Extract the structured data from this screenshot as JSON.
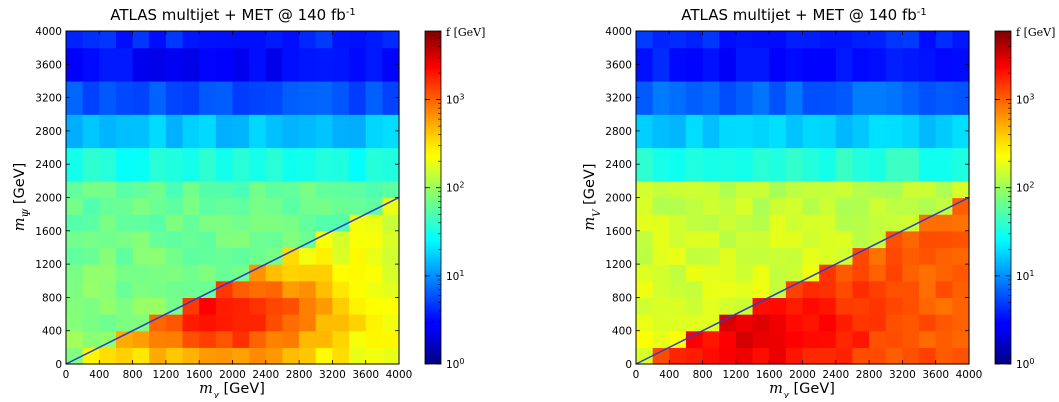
{
  "chart_data": [
    {
      "type": "heatmap",
      "title": "ATLAS multijet + MET @ 140 fb",
      "title_sup": "-1",
      "xlabel": "m",
      "xlabel_sub": "χ",
      "xlabel_unit": " [GeV]",
      "ylabel": "m",
      "ylabel_sub": "Ψ",
      "ylabel_unit": " [GeV]",
      "xlim": [
        0,
        4000
      ],
      "ylim": [
        0,
        4000
      ],
      "xticks": [
        0,
        400,
        800,
        1200,
        1600,
        2000,
        2400,
        2800,
        3200,
        3600,
        4000
      ],
      "yticks": [
        0,
        400,
        800,
        1200,
        1600,
        2000,
        2400,
        2800,
        3200,
        3600,
        4000
      ],
      "colorbar": {
        "label": "f [GeV]",
        "scale": "log",
        "range": [
          1,
          6000
        ],
        "colormap": "jet",
        "ticks": [
          {
            "base": "10",
            "exp": "0",
            "value": 1
          },
          {
            "base": "10",
            "exp": "1",
            "value": 10
          },
          {
            "base": "10",
            "exp": "2",
            "value": 100
          },
          {
            "base": "10",
            "exp": "3",
            "value": 1000
          }
        ]
      },
      "diagonal_line": {
        "from": [
          0,
          0
        ],
        "to": [
          4000,
          2000
        ],
        "color": "#2b3fc8"
      },
      "grid": {
        "x_step": 200,
        "y_step": 200,
        "upper_band_step": 400
      },
      "band_values": [
        {
          "y_range": [
            2200,
            2600
          ],
          "value": 32
        },
        {
          "y_range": [
            2600,
            3000
          ],
          "value": 16
        },
        {
          "y_range": [
            3000,
            3400
          ],
          "value": 6
        },
        {
          "y_range": [
            3400,
            3800
          ],
          "value": 3
        },
        {
          "y_range": [
            3800,
            4000
          ],
          "value": 4
        }
      ],
      "below_line_value": 170,
      "above_line_value": 90,
      "peak_value": 2000,
      "peak_center": [
        1900,
        600
      ]
    },
    {
      "type": "heatmap",
      "title": "ATLAS multijet + MET @ 140 fb",
      "title_sup": "-1",
      "xlabel": "m",
      "xlabel_sub": "χ",
      "xlabel_unit": " [GeV]",
      "ylabel": "m",
      "ylabel_sub": "V",
      "ylabel_unit": " [GeV]",
      "xlim": [
        0,
        4000
      ],
      "ylim": [
        0,
        4000
      ],
      "xticks": [
        0,
        400,
        800,
        1200,
        1600,
        2000,
        2400,
        2800,
        3200,
        3600,
        4000
      ],
      "yticks": [
        0,
        400,
        800,
        1200,
        1600,
        2000,
        2400,
        2800,
        3200,
        3600,
        4000
      ],
      "colorbar": {
        "label": "f [GeV]",
        "scale": "log",
        "range": [
          1,
          6000
        ],
        "colormap": "jet",
        "ticks": [
          {
            "base": "10",
            "exp": "0",
            "value": 1
          },
          {
            "base": "10",
            "exp": "1",
            "value": 10
          },
          {
            "base": "10",
            "exp": "2",
            "value": 100
          },
          {
            "base": "10",
            "exp": "3",
            "value": 1000
          }
        ]
      },
      "diagonal_line": {
        "from": [
          0,
          0
        ],
        "to": [
          4000,
          2000
        ],
        "color": "#2b3fc8"
      },
      "grid": {
        "x_step": 200,
        "y_step": 200,
        "upper_band_step": 400
      },
      "band_values": [
        {
          "y_range": [
            2200,
            2600
          ],
          "value": 35
        },
        {
          "y_range": [
            2600,
            3000
          ],
          "value": 17
        },
        {
          "y_range": [
            3000,
            3400
          ],
          "value": 7
        },
        {
          "y_range": [
            3400,
            3800
          ],
          "value": 3.5
        },
        {
          "y_range": [
            3800,
            4000
          ],
          "value": 4
        }
      ],
      "below_line_value": 900,
      "above_line_value": 200,
      "peak_value": 2500,
      "peak_center": [
        1500,
        400
      ]
    }
  ]
}
